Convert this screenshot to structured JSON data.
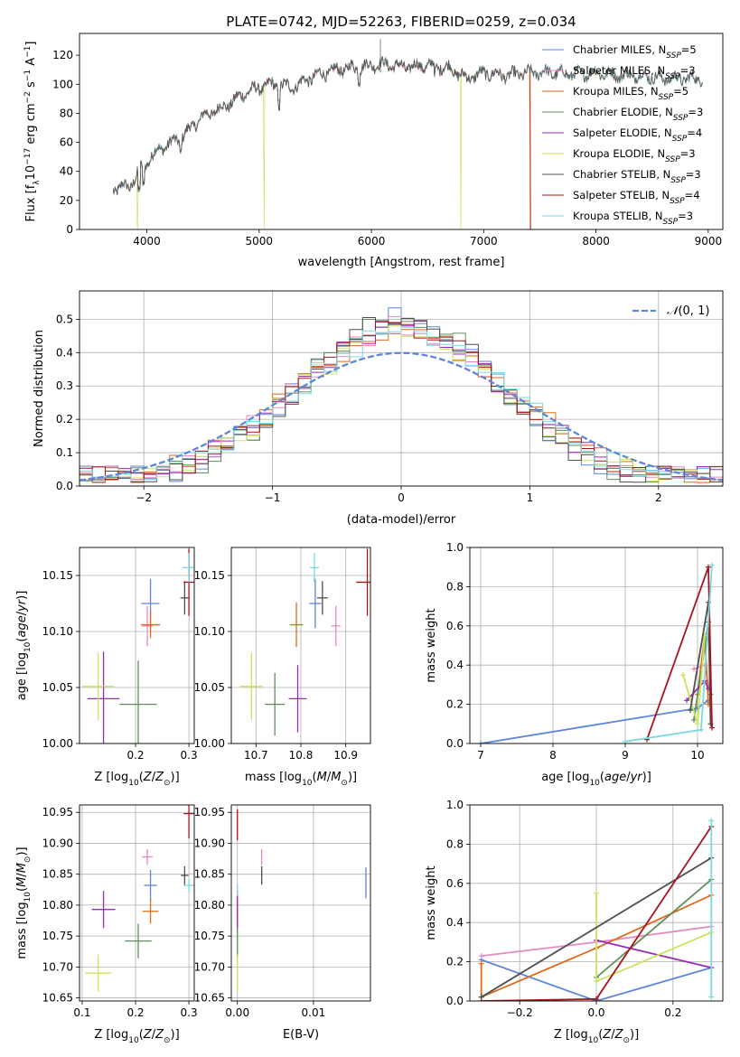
{
  "colors": {
    "Chabrier MILES": "#5f86d9",
    "Salpeter MILES": "#e58ac5",
    "Kroupa MILES": "#e06a1b",
    "Chabrier ELODIE": "#5f8f5a",
    "Salpeter ELODIE": "#9a2db6",
    "Kroupa ELODIE": "#c9e55c",
    "Chabrier STELIB": "#505050",
    "Salpeter STELIB": "#a7141c",
    "Kroupa STELIB": "#7ad9e2",
    "normal": "#5f86d9",
    "grid": "#b0b0b0"
  },
  "chart_data": [
    {
      "id": "spectrum",
      "type": "line",
      "title": "PLATE=0742, MJD=52263, FIBERID=0259, z=0.034",
      "xlabel": "wavelength [Angstrom, rest frame]",
      "ylabel": "Flux [fλ10⁻¹⁷ erg cm⁻² s⁻¹ A⁻¹]",
      "xlim": [
        3400,
        9130
      ],
      "ylim": [
        0,
        135
      ],
      "xticks": [
        4000,
        5000,
        6000,
        7000,
        8000,
        9000
      ],
      "yticks": [
        0,
        20,
        40,
        60,
        80,
        100,
        120
      ],
      "grid": false,
      "legend": "upper-right",
      "continuum": [
        [
          3700,
          28
        ],
        [
          3850,
          30
        ],
        [
          3950,
          42
        ],
        [
          4100,
          55
        ],
        [
          4300,
          63
        ],
        [
          4500,
          78
        ],
        [
          4700,
          85
        ],
        [
          4900,
          95
        ],
        [
          5100,
          100
        ],
        [
          5300,
          98
        ],
        [
          5500,
          106
        ],
        [
          5700,
          110
        ],
        [
          5900,
          112
        ],
        [
          6100,
          114
        ],
        [
          6300,
          112
        ],
        [
          6500,
          113
        ],
        [
          6700,
          111
        ],
        [
          6850,
          104
        ],
        [
          7000,
          108
        ],
        [
          7200,
          106
        ],
        [
          7400,
          108
        ],
        [
          7600,
          108
        ],
        [
          7800,
          107
        ],
        [
          8000,
          108
        ],
        [
          8200,
          106
        ],
        [
          8400,
          106
        ],
        [
          8600,
          104
        ],
        [
          8800,
          104
        ],
        [
          8950,
          104
        ]
      ],
      "dropouts": [
        {
          "series": "Kroupa ELODIE",
          "at": 3915
        },
        {
          "series": "Kroupa ELODIE",
          "at": 5045
        },
        {
          "series": "Kroupa ELODIE",
          "at": 6795
        },
        {
          "series": "Kroupa MILES",
          "at": 7415
        },
        {
          "series": "Salpeter STELIB",
          "at": 7418
        }
      ],
      "series": [
        {
          "name": "Chabrier MILES, N_SSP=5",
          "key": "Chabrier MILES",
          "label_main": "Chabrier MILES, N",
          "label_sub": "SSP",
          "label_end": "=5"
        },
        {
          "name": "Salpeter MILES, N_SSP=3",
          "key": "Salpeter MILES",
          "label_main": "Salpeter MILES, N",
          "label_sub": "SSP",
          "label_end": "=3"
        },
        {
          "name": "Kroupa MILES, N_SSP=5",
          "key": "Kroupa MILES",
          "label_main": "Kroupa MILES, N",
          "label_sub": "SSP",
          "label_end": "=5"
        },
        {
          "name": "Chabrier ELODIE, N_SSP=3",
          "key": "Chabrier ELODIE",
          "label_main": "Chabrier ELODIE, N",
          "label_sub": "SSP",
          "label_end": "=3"
        },
        {
          "name": "Salpeter ELODIE, N_SSP=4",
          "key": "Salpeter ELODIE",
          "label_main": "Salpeter ELODIE, N",
          "label_sub": "SSP",
          "label_end": "=4"
        },
        {
          "name": "Kroupa ELODIE, N_SSP=3",
          "key": "Kroupa ELODIE",
          "label_main": "Kroupa ELODIE, N",
          "label_sub": "SSP",
          "label_end": "=3"
        },
        {
          "name": "Chabrier STELIB, N_SSP=3",
          "key": "Chabrier STELIB",
          "label_main": "Chabrier STELIB, N",
          "label_sub": "SSP",
          "label_end": "=3"
        },
        {
          "name": "Salpeter STELIB, N_SSP=4",
          "key": "Salpeter STELIB",
          "label_main": "Salpeter STELIB, N",
          "label_sub": "SSP",
          "label_end": "=4"
        },
        {
          "name": "Kroupa STELIB, N_SSP=3",
          "key": "Kroupa STELIB",
          "label_main": "Kroupa STELIB, N",
          "label_sub": "SSP",
          "label_end": "=3"
        }
      ]
    },
    {
      "id": "residuals",
      "type": "histogram",
      "xlabel": "(data-model)/error",
      "ylabel": "Normed distribution",
      "xlim": [
        -2.5,
        2.5
      ],
      "ylim": [
        0,
        0.585
      ],
      "xticks": [
        -2,
        -1,
        0,
        1,
        2
      ],
      "yticks": [
        0.0,
        0.1,
        0.2,
        0.3,
        0.4,
        0.5
      ],
      "grid": true,
      "bin_width": 0.1,
      "legend": "upper-right",
      "reference": {
        "name": "N(0, 1)",
        "label_script": "𝒩",
        "label_args": "(0, 1)",
        "mean": 0,
        "sigma": 1
      },
      "series_keys": [
        "Chabrier MILES",
        "Salpeter MILES",
        "Kroupa MILES",
        "Chabrier ELODIE",
        "Salpeter ELODIE",
        "Kroupa ELODIE",
        "Chabrier STELIB",
        "Salpeter STELIB",
        "Kroupa STELIB"
      ]
    },
    {
      "id": "age-vs-Z",
      "type": "scatter",
      "xlabel": "Z [log₁₀(Z/Z⊙)]",
      "ylabel": "age  [log₁₀(age/yr)]",
      "xlim": [
        0.095,
        0.31
      ],
      "ylim": [
        10.0,
        10.175
      ],
      "xticks": [
        0.2,
        0.3
      ],
      "yticks": [
        10.0,
        10.05,
        10.1,
        10.15
      ],
      "ytick_labels": [
        "10.00",
        "10.05",
        "10.10",
        "10.15"
      ],
      "xtick_labels": [
        "0.2",
        "0.3"
      ],
      "grid": true,
      "points": [
        {
          "key": "Chabrier MILES",
          "x": 0.228,
          "y": 10.125,
          "xerr": 0.017,
          "yerr": 0.022
        },
        {
          "key": "Salpeter MILES",
          "x": 0.222,
          "y": 10.105,
          "xerr": 0.01,
          "yerr": 0.018
        },
        {
          "key": "Kroupa MILES",
          "x": 0.228,
          "y": 10.106,
          "xerr": 0.018,
          "yerr": 0.012
        },
        {
          "key": "Chabrier ELODIE",
          "x": 0.205,
          "y": 10.035,
          "xerr": 0.035,
          "yerr": 0.039
        },
        {
          "key": "Salpeter ELODIE",
          "x": 0.14,
          "y": 10.04,
          "xerr": 0.03,
          "yerr": 0.042
        },
        {
          "key": "Kroupa ELODIE",
          "x": 0.13,
          "y": 10.051,
          "xerr": 0.03,
          "yerr": 0.03
        },
        {
          "key": "Chabrier STELIB",
          "x": 0.292,
          "y": 10.13,
          "xerr": 0.008,
          "yerr": 0.015
        },
        {
          "key": "Salpeter STELIB",
          "x": 0.3,
          "y": 10.144,
          "xerr": 0.01,
          "yerr": 0.03
        },
        {
          "key": "Kroupa STELIB",
          "x": 0.3,
          "y": 10.157,
          "xerr": 0.012,
          "yerr": 0.013
        }
      ]
    },
    {
      "id": "age-vs-mass",
      "type": "scatter",
      "xlabel": "mass [log₁₀(M/M⊙)]",
      "ylabel": "",
      "xlim": [
        10.645,
        10.955
      ],
      "ylim": [
        10.0,
        10.175
      ],
      "xticks": [
        10.7,
        10.8,
        10.9
      ],
      "xtick_labels": [
        "10.7",
        "10.8",
        "10.9"
      ],
      "yticks": [
        10.0,
        10.05,
        10.1,
        10.15
      ],
      "ytick_labels": [
        "10.00",
        "10.05",
        "10.10",
        "10.15"
      ],
      "grid": true,
      "points": [
        {
          "key": "Chabrier MILES",
          "x": 10.832,
          "y": 10.125,
          "xerr": 0.013,
          "yerr": 0.022
        },
        {
          "key": "Salpeter MILES",
          "x": 10.878,
          "y": 10.105,
          "xerr": 0.01,
          "yerr": 0.018
        },
        {
          "key": "Kroupa MILES",
          "x": 10.79,
          "y": 10.106,
          "xerr": 0.015,
          "yerr": 0.02
        },
        {
          "key": "Chabrier ELODIE",
          "x": 10.742,
          "y": 10.035,
          "xerr": 0.022,
          "yerr": 0.028
        },
        {
          "key": "Salpeter ELODIE",
          "x": 10.793,
          "y": 10.04,
          "xerr": 0.02,
          "yerr": 0.03
        },
        {
          "key": "Kroupa ELODIE",
          "x": 10.69,
          "y": 10.051,
          "xerr": 0.025,
          "yerr": 0.03
        },
        {
          "key": "Chabrier STELIB",
          "x": 10.848,
          "y": 10.13,
          "xerr": 0.012,
          "yerr": 0.015
        },
        {
          "key": "Salpeter STELIB",
          "x": 10.948,
          "y": 10.144,
          "xerr": 0.025,
          "yerr": 0.03
        },
        {
          "key": "Kroupa STELIB",
          "x": 10.83,
          "y": 10.157,
          "xerr": 0.01,
          "yerr": 0.013
        }
      ]
    },
    {
      "id": "weight-vs-age",
      "type": "line",
      "xlabel": "age  [log₁₀(age/yr)]",
      "ylabel": "mass weight",
      "xlim": [
        6.85,
        10.35
      ],
      "ylim": [
        0,
        1.0
      ],
      "xticks": [
        7,
        8,
        9,
        10
      ],
      "yticks": [
        0.0,
        0.2,
        0.4,
        0.6,
        0.8,
        1.0
      ],
      "grid": true,
      "series": [
        {
          "key": "Chabrier MILES",
          "x": [
            7.0,
            10.0,
            10.15
          ],
          "y": [
            0.0,
            0.18,
            0.22
          ]
        },
        {
          "key": "Salpeter MILES",
          "x": [
            9.95,
            10.1,
            10.15
          ],
          "y": [
            0.38,
            0.4,
            0.3
          ]
        },
        {
          "key": "Kroupa MILES",
          "x": [
            10.0,
            10.1,
            10.15
          ],
          "y": [
            0.25,
            0.55,
            0.2
          ]
        },
        {
          "key": "Chabrier ELODIE",
          "x": [
            9.95,
            10.15,
            10.18
          ],
          "y": [
            0.12,
            0.62,
            0.25
          ]
        },
        {
          "key": "Salpeter ELODIE",
          "x": [
            9.85,
            10.1,
            10.15
          ],
          "y": [
            0.22,
            0.32,
            0.28
          ]
        },
        {
          "key": "Kroupa ELODIE",
          "x": [
            9.8,
            10.0,
            10.1
          ],
          "y": [
            0.35,
            0.1,
            0.55
          ]
        },
        {
          "key": "Chabrier STELIB",
          "x": [
            9.9,
            10.15,
            10.18
          ],
          "y": [
            0.17,
            0.72,
            0.1
          ]
        },
        {
          "key": "Salpeter STELIB",
          "x": [
            9.3,
            10.15,
            10.2
          ],
          "y": [
            0.02,
            0.9,
            0.08
          ]
        },
        {
          "key": "Kroupa STELIB",
          "x": [
            9.0,
            10.05,
            10.2
          ],
          "y": [
            0.01,
            0.07,
            0.91
          ]
        }
      ]
    },
    {
      "id": "mass-vs-Z",
      "type": "scatter",
      "xlabel": "Z [log₁₀(Z/Z⊙)]",
      "ylabel": "mass [log₁₀(M/M⊙)]",
      "xlim": [
        0.095,
        0.31
      ],
      "ylim": [
        10.645,
        10.962
      ],
      "xticks": [
        0.1,
        0.2,
        0.3
      ],
      "xtick_labels": [
        "0.1",
        "0.2",
        "0.3"
      ],
      "yticks": [
        10.65,
        10.7,
        10.75,
        10.8,
        10.85,
        10.9,
        10.95
      ],
      "ytick_labels": [
        "10.65",
        "10.70",
        "10.75",
        "10.80",
        "10.85",
        "10.90",
        "10.95"
      ],
      "grid": true,
      "points": [
        {
          "key": "Chabrier MILES",
          "x": 0.228,
          "y": 10.832,
          "xerr": 0.012,
          "yerr": 0.025
        },
        {
          "key": "Salpeter MILES",
          "x": 0.222,
          "y": 10.878,
          "xerr": 0.01,
          "yerr": 0.013
        },
        {
          "key": "Kroupa MILES",
          "x": 0.228,
          "y": 10.79,
          "xerr": 0.015,
          "yerr": 0.02
        },
        {
          "key": "Chabrier ELODIE",
          "x": 0.205,
          "y": 10.742,
          "xerr": 0.025,
          "yerr": 0.028
        },
        {
          "key": "Salpeter ELODIE",
          "x": 0.14,
          "y": 10.793,
          "xerr": 0.022,
          "yerr": 0.03
        },
        {
          "key": "Kroupa ELODIE",
          "x": 0.13,
          "y": 10.69,
          "xerr": 0.025,
          "yerr": 0.03
        },
        {
          "key": "Chabrier STELIB",
          "x": 0.292,
          "y": 10.848,
          "xerr": 0.007,
          "yerr": 0.015
        },
        {
          "key": "Salpeter STELIB",
          "x": 0.3,
          "y": 10.948,
          "xerr": 0.01,
          "yerr": 0.04
        },
        {
          "key": "Kroupa STELIB",
          "x": 0.3,
          "y": 10.832,
          "xerr": 0.01,
          "yerr": 0.01
        }
      ]
    },
    {
      "id": "mass-vs-ebv",
      "type": "scatter",
      "xlabel": "E(B-V)",
      "ylabel": "",
      "xlim": [
        -0.0008,
        0.0175
      ],
      "ylim": [
        10.645,
        10.962
      ],
      "xticks": [
        0.0,
        0.01
      ],
      "xtick_labels": [
        "0.00",
        "0.01"
      ],
      "yticks": [
        10.65,
        10.7,
        10.75,
        10.8,
        10.85,
        10.9,
        10.95
      ],
      "ytick_labels": [
        "10.65",
        "10.70",
        "10.75",
        "10.80",
        "10.85",
        "10.90",
        "10.95"
      ],
      "grid": true,
      "points": [
        {
          "key": "Chabrier MILES",
          "x": 0.0169,
          "y": 10.836,
          "xerr": 0,
          "yerr": 0.025
        },
        {
          "key": "Salpeter MILES",
          "x": 0.0032,
          "y": 10.878,
          "xerr": 0,
          "yerr": 0.013
        },
        {
          "key": "Kroupa MILES",
          "x": 0.0,
          "y": 10.79,
          "xerr": 0,
          "yerr": 0.02
        },
        {
          "key": "Chabrier ELODIE",
          "x": 0.0,
          "y": 10.742,
          "xerr": 0,
          "yerr": 0.028
        },
        {
          "key": "Salpeter ELODIE",
          "x": 0.0,
          "y": 10.793,
          "xerr": 0,
          "yerr": 0.03
        },
        {
          "key": "Kroupa ELODIE",
          "x": 0.0,
          "y": 10.69,
          "xerr": 0,
          "yerr": 0.03
        },
        {
          "key": "Chabrier STELIB",
          "x": 0.0032,
          "y": 10.848,
          "xerr": 0,
          "yerr": 0.015
        },
        {
          "key": "Salpeter STELIB",
          "x": 0.0,
          "y": 10.93,
          "xerr": 0,
          "yerr": 0.025
        },
        {
          "key": "Kroupa STELIB",
          "x": 0.0,
          "y": 10.825,
          "xerr": 0,
          "yerr": 0.01
        }
      ]
    },
    {
      "id": "weight-vs-Z",
      "type": "line",
      "xlabel": "Z [log₁₀(Z/Z⊙)]",
      "ylabel": "mass weight",
      "xlim": [
        -0.33,
        0.33
      ],
      "ylim": [
        0,
        1.0
      ],
      "xticks": [
        -0.2,
        0.0,
        0.2
      ],
      "xtick_labels": [
        "−0.2",
        "0.0",
        "0.2"
      ],
      "yticks": [
        0.0,
        0.2,
        0.4,
        0.6,
        0.8,
        1.0
      ],
      "grid": true,
      "series": [
        {
          "key": "Chabrier MILES",
          "x": [
            -0.3,
            0.0,
            0.3
          ],
          "y": [
            0.21,
            0.0,
            0.17
          ]
        },
        {
          "key": "Salpeter MILES",
          "x": [
            -0.3,
            0.0,
            0.3
          ],
          "y": [
            0.23,
            0.3,
            0.38
          ]
        },
        {
          "key": "Kroupa MILES",
          "x": [
            -0.3,
            -0.3,
            0.0,
            0.3
          ],
          "y": [
            0.19,
            0.02,
            0.27,
            0.54
          ]
        },
        {
          "key": "Chabrier ELODIE",
          "x": [
            0.0,
            0.3
          ],
          "y": [
            0.12,
            0.62
          ]
        },
        {
          "key": "Salpeter ELODIE",
          "x": [
            0.0,
            0.3
          ],
          "y": [
            0.31,
            0.17
          ]
        },
        {
          "key": "Kroupa ELODIE",
          "x": [
            0.0,
            0.0,
            0.3
          ],
          "y": [
            0.55,
            0.1,
            0.35
          ]
        },
        {
          "key": "Chabrier STELIB",
          "x": [
            -0.3,
            0.3
          ],
          "y": [
            0.02,
            0.73
          ]
        },
        {
          "key": "Salpeter STELIB",
          "x": [
            -0.3,
            0.0,
            0.3
          ],
          "y": [
            0.0,
            0.01,
            0.89
          ]
        },
        {
          "key": "Kroupa STELIB",
          "x": [
            0.3,
            0.3
          ],
          "y": [
            0.02,
            0.92
          ]
        }
      ]
    }
  ]
}
